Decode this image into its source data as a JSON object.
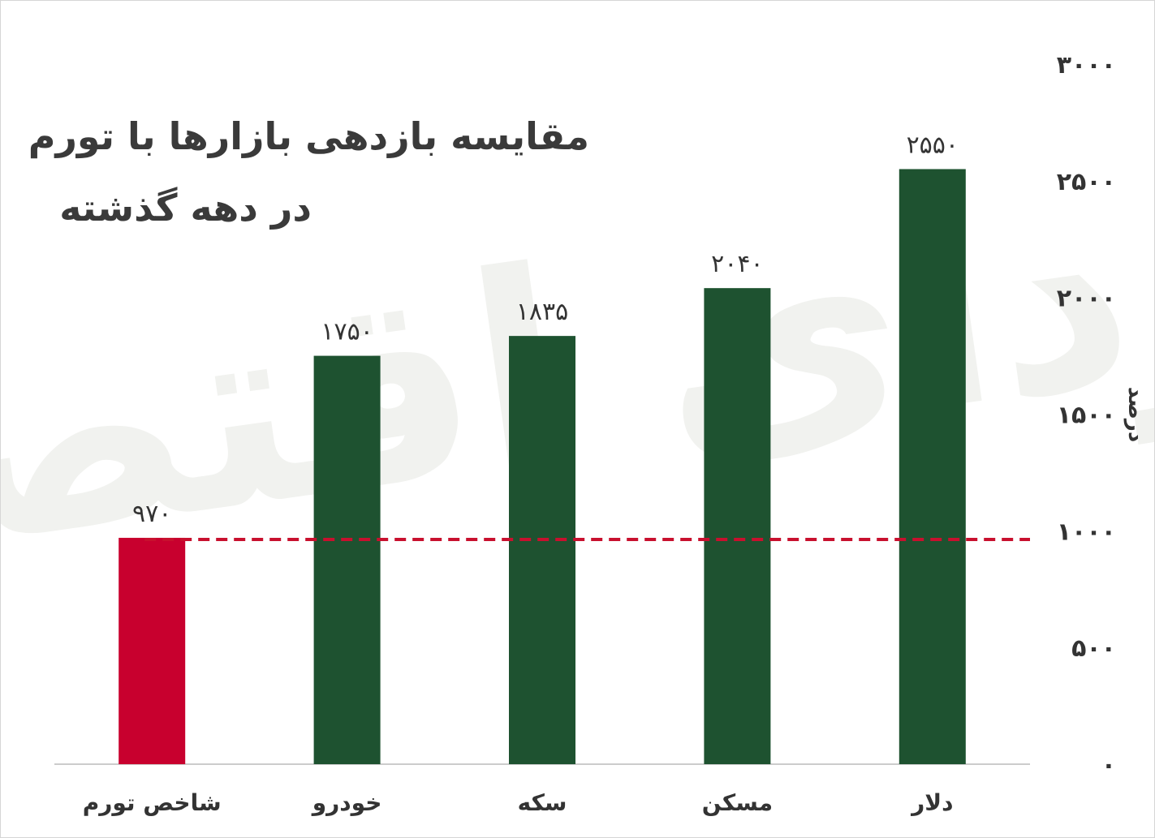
{
  "chart_data": {
    "type": "bar",
    "title_lines": [
      "مقایسه بازدهی بازارها با تورم",
      "در دهه گذشته"
    ],
    "categories": [
      "شاخص تورم",
      "خودرو",
      "سکه",
      "مسکن",
      "دلار"
    ],
    "values": [
      970,
      1750,
      1835,
      2040,
      2550
    ],
    "value_labels": [
      "۹۷۰",
      "۱۷۵۰",
      "۱۸۳۵",
      "۲۰۴۰",
      "۲۵۵۰"
    ],
    "ylabel": "درصد",
    "ylim": [
      0,
      3000
    ],
    "y_ticks": [
      0,
      500,
      1000,
      1500,
      2000,
      2500,
      3000
    ],
    "y_tick_labels": [
      "۰",
      "۵۰۰",
      "۱۰۰۰",
      "۱۵۰۰",
      "۲۰۰۰",
      "۲۵۰۰",
      "۳۰۰۰"
    ],
    "y_axis_side": "right",
    "grid": false,
    "reference_line": {
      "value": 970,
      "style": "dashed",
      "color": "#c8102e"
    },
    "colors": {
      "highlight": "#c8002e",
      "default": "#1e5230",
      "axis": "#cccccc"
    },
    "highlight_index": 0
  },
  "watermark": {
    "text": "فردای اقتصاد"
  }
}
